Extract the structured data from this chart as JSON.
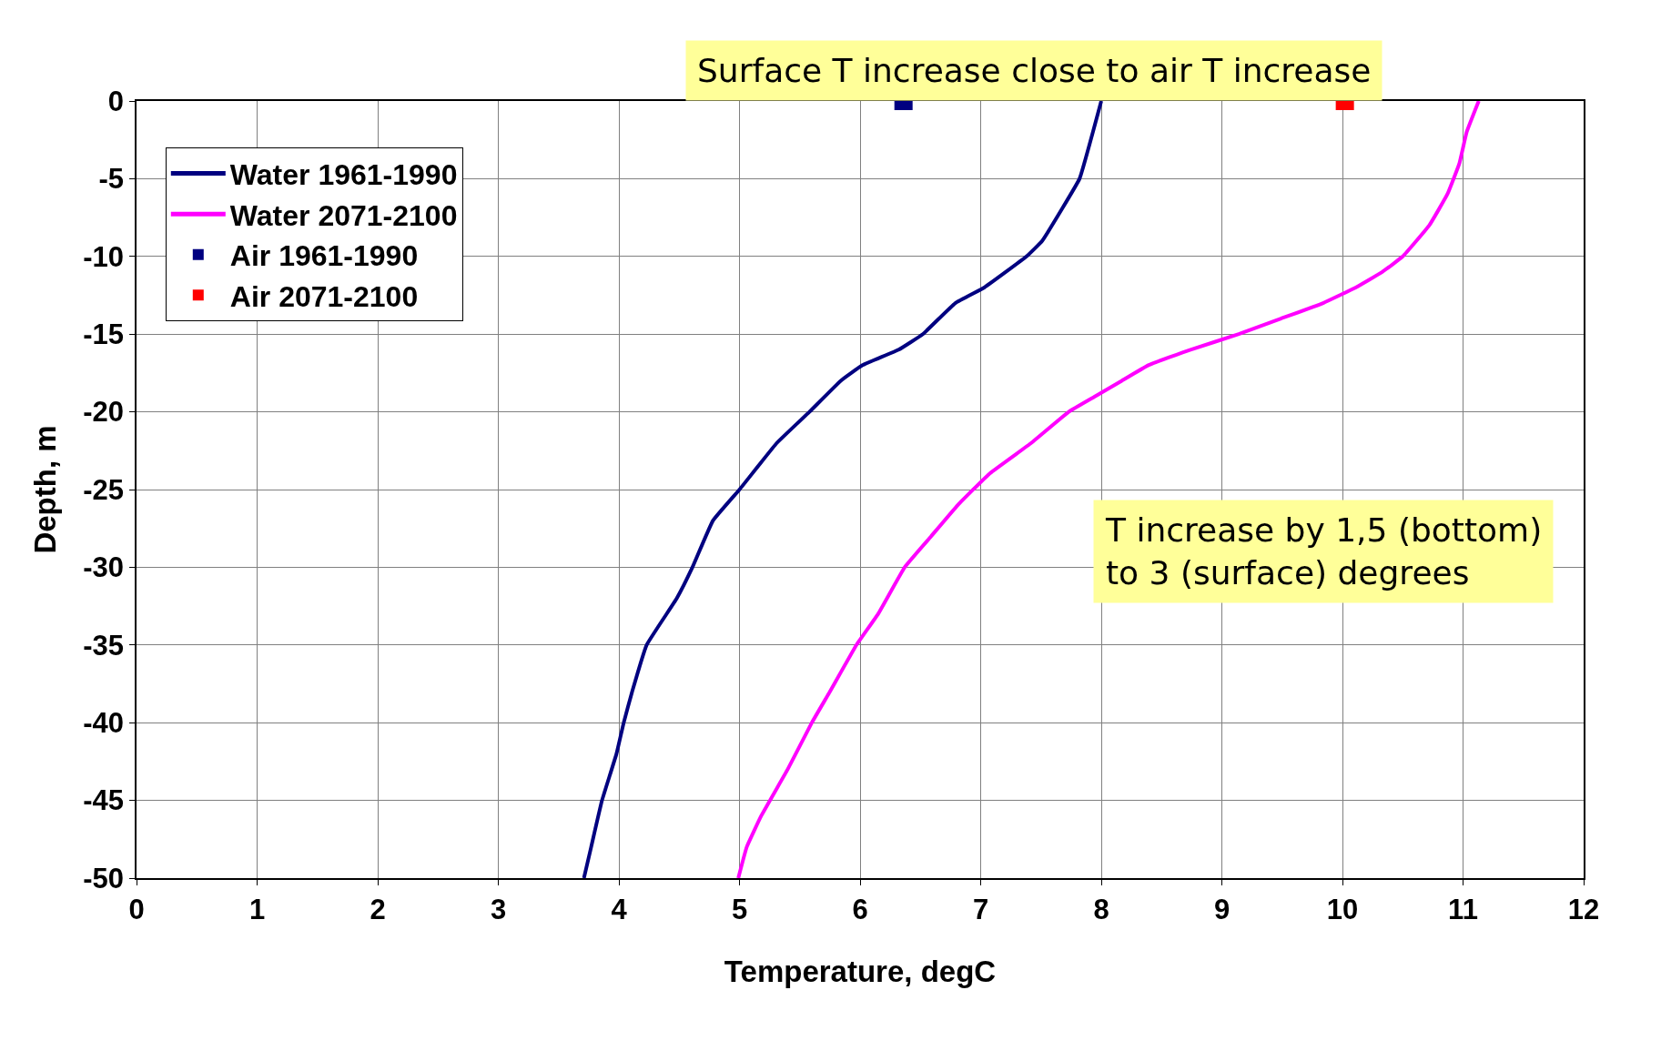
{
  "chart_data": {
    "type": "line",
    "xlabel": "Temperature, degC",
    "ylabel": "Depth, m",
    "annotations": [
      "Surface T increase close to air T increase",
      "T increase by 1,5 (bottom)\nto 3 (surface) degrees"
    ],
    "xlim": [
      0,
      12
    ],
    "xticks": [
      0,
      1,
      2,
      3,
      4,
      5,
      6,
      7,
      8,
      9,
      10,
      11,
      12
    ],
    "ylim": [
      -50,
      0
    ],
    "yticks": [
      -50,
      -45,
      -40,
      -35,
      -30,
      -25,
      -20,
      -15,
      -10,
      -5,
      0
    ],
    "grid": true,
    "legend": "top left",
    "line_style": "solid",
    "series": [
      {
        "name": "Water 1961-1990",
        "color": "#000080",
        "x": [
          8.0,
          7.82,
          7.67,
          7.51,
          7.38,
          7.03,
          6.79,
          6.52,
          6.32,
          6.02,
          5.84,
          5.58,
          5.31,
          5.0,
          4.78,
          4.61,
          4.48,
          4.23,
          4.11,
          4.04,
          3.98,
          3.86,
          3.77,
          3.71
        ],
        "values": [
          0,
          -5,
          -7,
          -9,
          -10,
          -12,
          -13,
          -15,
          -16,
          -17,
          -18,
          -20,
          -22,
          -25,
          -27,
          -30,
          -32,
          -35,
          -38,
          -40,
          -42,
          -45,
          -48,
          -50
        ]
      },
      {
        "name": "Water 2071-2100",
        "color": "#ff00ff",
        "x": [
          11.13,
          11.03,
          10.97,
          10.87,
          10.72,
          10.5,
          10.33,
          10.11,
          9.84,
          9.49,
          9.14,
          8.74,
          8.39,
          8.17,
          7.95,
          7.73,
          7.42,
          7.07,
          6.81,
          6.59,
          6.37,
          6.15,
          5.97,
          5.75,
          5.6,
          5.4,
          5.18,
          5.06,
          4.99
        ],
        "values": [
          0,
          -2,
          -4,
          -6,
          -8,
          -10,
          -11,
          -12,
          -13,
          -14,
          -15,
          -16,
          -17,
          -18,
          -19,
          -20,
          -22,
          -24,
          -26,
          -28,
          -30,
          -33,
          -35,
          -38,
          -40,
          -43,
          -46,
          -48,
          -50
        ]
      },
      {
        "name": "Air 1961-1990",
        "type": "scatter",
        "marker": "square",
        "color": "#000080",
        "x": [
          6.36
        ],
        "values": [
          0
        ]
      },
      {
        "name": "Air 2071-2100",
        "type": "scatter",
        "marker": "square",
        "color": "#ff0000",
        "x": [
          10.02
        ],
        "values": [
          0
        ]
      }
    ]
  }
}
